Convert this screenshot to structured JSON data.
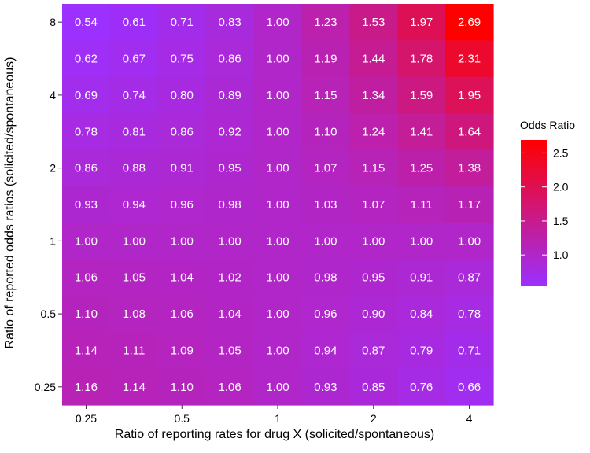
{
  "chart_data": {
    "type": "heatmap",
    "xlabel": "Ratio of reporting rates for drug X (solicited/spontaneous)",
    "ylabel": "Ratio of reported odds ratios (solicited/spontaneous)",
    "x_tick_labels": [
      "0.25",
      "0.5",
      "1",
      "2",
      "4"
    ],
    "y_tick_labels": [
      "0.25",
      "0.5",
      "1",
      "2",
      "4",
      "8"
    ],
    "x_values": [
      0.25,
      0.354,
      0.5,
      0.707,
      1,
      1.414,
      2,
      2.828,
      4
    ],
    "y_values": [
      8,
      5.657,
      4,
      2.828,
      2,
      1.414,
      1,
      0.707,
      0.5,
      0.354,
      0.25
    ],
    "x_scale": "log2",
    "y_scale": "log2",
    "values": [
      [
        "0.54",
        "0.61",
        "0.71",
        "0.83",
        "1.00",
        "1.23",
        "1.53",
        "1.97",
        "2.69"
      ],
      [
        "0.62",
        "0.67",
        "0.75",
        "0.86",
        "1.00",
        "1.19",
        "1.44",
        "1.78",
        "2.31"
      ],
      [
        "0.69",
        "0.74",
        "0.80",
        "0.89",
        "1.00",
        "1.15",
        "1.34",
        "1.59",
        "1.95"
      ],
      [
        "0.78",
        "0.81",
        "0.86",
        "0.92",
        "1.00",
        "1.10",
        "1.24",
        "1.41",
        "1.64"
      ],
      [
        "0.86",
        "0.88",
        "0.91",
        "0.95",
        "1.00",
        "1.07",
        "1.15",
        "1.25",
        "1.38"
      ],
      [
        "0.93",
        "0.94",
        "0.96",
        "0.98",
        "1.00",
        "1.03",
        "1.07",
        "1.11",
        "1.17"
      ],
      [
        "1.00",
        "1.00",
        "1.00",
        "1.00",
        "1.00",
        "1.00",
        "1.00",
        "1.00",
        "1.00"
      ],
      [
        "1.06",
        "1.05",
        "1.04",
        "1.02",
        "1.00",
        "0.98",
        "0.95",
        "0.91",
        "0.87"
      ],
      [
        "1.10",
        "1.08",
        "1.06",
        "1.04",
        "1.00",
        "0.96",
        "0.90",
        "0.84",
        "0.78"
      ],
      [
        "1.14",
        "1.11",
        "1.09",
        "1.05",
        "1.00",
        "0.94",
        "0.87",
        "0.79",
        "0.71"
      ],
      [
        "1.16",
        "1.14",
        "1.10",
        "1.06",
        "1.00",
        "0.93",
        "0.85",
        "0.76",
        "0.66"
      ]
    ],
    "legend": {
      "title": "Odds Ratio",
      "ticks": [
        "1.0",
        "1.5",
        "2.0",
        "2.5"
      ],
      "tick_values": [
        1.0,
        1.5,
        2.0,
        2.5
      ],
      "range": [
        0.54,
        2.69
      ],
      "color_low": "#9b30ff",
      "color_high": "#ff0000",
      "placement": "right"
    },
    "grid": false
  }
}
